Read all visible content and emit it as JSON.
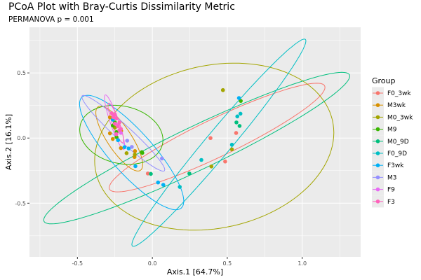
{
  "chart_data": {
    "type": "scatter",
    "title": "PCoA Plot with Bray-Curtis Dissimilarity Metric",
    "subtitle": "PERMANOVA p = 0.001",
    "xlabel": "Axis.1  [64.7%]",
    "ylabel": "Axis.2  [16.1%]",
    "xlim": [
      -0.82,
      1.39
    ],
    "ylim": [
      -0.912,
      0.85
    ],
    "xticks": [
      {
        "v": -0.5,
        "label": "-0.5"
      },
      {
        "v": 0.0,
        "label": "0.0"
      },
      {
        "v": 0.5,
        "label": "0.5"
      },
      {
        "v": 1.0,
        "label": "1.0"
      }
    ],
    "yticks": [
      {
        "v": 0.5,
        "label": "0.5"
      },
      {
        "v": 0.0,
        "label": "0.0"
      },
      {
        "v": -0.5,
        "label": "-0.5"
      }
    ],
    "xminor": [
      -0.75,
      -0.25,
      0.25,
      0.75,
      1.25
    ],
    "yminor": [
      0.75,
      0.25,
      -0.25,
      -0.75
    ],
    "grid": true,
    "legend": {
      "title": "Group",
      "placement": "right"
    },
    "series": [
      {
        "name": "F0_3wk",
        "color": "#F8766D",
        "points": [
          [
            0.559,
            0.039
          ],
          [
            0.388,
            0.0
          ],
          [
            0.486,
            -0.18
          ],
          [
            -0.03,
            -0.272
          ]
        ],
        "ellipse": {
          "center": [
            0.432,
            0.004
          ],
          "a": [
            0.718,
            0.396
          ],
          "b": [
            0.055,
            -0.13
          ]
        }
      },
      {
        "name": "M3wk",
        "color": "#D89000",
        "points": [
          [
            -0.116,
            -0.1
          ],
          [
            -0.119,
            -0.145
          ],
          [
            -0.21,
            -0.077
          ],
          [
            -0.264,
            -0.007
          ],
          [
            -0.283,
            0.036
          ],
          [
            -0.208,
            0.055
          ],
          [
            -0.283,
            0.159
          ]
        ],
        "ellipse": {
          "center": [
            -0.221,
            -0.004
          ],
          "a": [
            0.141,
            -0.244
          ],
          "b": [
            0.067,
            0.05
          ]
        }
      },
      {
        "name": "M0_3wk",
        "color": "#A3A500",
        "points": [
          [
            0.471,
            0.368
          ],
          [
            0.531,
            -0.087
          ],
          [
            0.394,
            -0.218
          ],
          [
            -0.172,
            -0.116
          ],
          [
            -0.117,
            -0.127
          ],
          [
            -0.25,
            0.08
          ]
        ],
        "ellipse": {
          "center": [
            0.413,
            -0.066
          ],
          "a": [
            0.798,
            0.107
          ],
          "b": [
            0.0,
            -0.632
          ]
        }
      },
      {
        "name": "M9",
        "color": "#39B600",
        "points": [
          [
            0.59,
            0.285
          ],
          [
            -0.067,
            -0.114
          ],
          [
            -0.07,
            -0.108
          ],
          [
            -0.239,
            0.007
          ],
          [
            -0.264,
            0.096
          ],
          [
            -0.239,
            0.046
          ],
          [
            -0.25,
            0.12
          ]
        ],
        "ellipse": {
          "center": [
            -0.207,
            0.025
          ],
          "a": [
            0.277,
            -0.054
          ],
          "b": [
            -0.019,
            -0.22
          ]
        }
      },
      {
        "name": "M0_9D",
        "color": "#00BF7D",
        "points": [
          [
            0.561,
            0.12
          ],
          [
            0.582,
            0.093
          ],
          [
            0.247,
            -0.272
          ],
          [
            -0.01,
            -0.275
          ]
        ],
        "ellipse": {
          "center": [
            0.296,
            -0.077
          ],
          "a": [
            1.019,
            0.562
          ],
          "b": [
            0.063,
            -0.149
          ]
        }
      },
      {
        "name": "F0_9D",
        "color": "#00BFC4",
        "points": [
          [
            0.588,
            0.187
          ],
          [
            0.567,
            0.166
          ],
          [
            0.531,
            -0.051
          ],
          [
            0.327,
            -0.168
          ],
          [
            0.183,
            -0.375
          ]
        ],
        "ellipse": {
          "center": [
            0.444,
            -0.036
          ],
          "a": [
            0.577,
            0.793
          ],
          "b": [
            0.065,
            -0.062
          ]
        }
      },
      {
        "name": "F3wk",
        "color": "#00B0F6",
        "points": [
          [
            0.578,
            0.307
          ],
          [
            0.038,
            -0.341
          ],
          [
            0.073,
            -0.359
          ],
          [
            -0.113,
            -0.216
          ],
          [
            -0.158,
            -0.08
          ],
          [
            -0.186,
            -0.07
          ],
          [
            -0.229,
            -0.016
          ],
          [
            -0.264,
            0.141
          ]
        ],
        "ellipse": {
          "center": [
            -0.138,
            -0.111
          ],
          "a": [
            0.331,
            -0.426
          ],
          "b": [
            0.106,
            0.107
          ]
        }
      },
      {
        "name": "M3",
        "color": "#9590FF",
        "points": [
          [
            0.064,
            -0.157
          ],
          [
            -0.137,
            -0.068
          ],
          [
            -0.168,
            -0.02
          ]
        ],
        "ellipse": {
          "center": [
            -0.194,
            0.037
          ],
          "a": [
            0.274,
            -0.288
          ],
          "b": [
            0.038,
            0.04
          ]
        }
      },
      {
        "name": "F9",
        "color": "#E76BF3",
        "points": [
          [
            -0.26,
            0.17
          ],
          [
            -0.23,
            0.1
          ],
          [
            -0.21,
            0.04
          ]
        ],
        "ellipse": {
          "center": [
            -0.252,
            0.122
          ],
          "a": [
            0.062,
            -0.209
          ],
          "b": [
            0.027,
            0.01
          ]
        }
      },
      {
        "name": "F3",
        "color": "#FF62BC",
        "points": [
          [
            -0.27,
            0.19
          ],
          [
            -0.25,
            0.18
          ],
          [
            -0.26,
            0.16
          ],
          [
            -0.24,
            0.15
          ],
          [
            -0.22,
            0.12
          ],
          [
            -0.23,
            0.09
          ],
          [
            -0.21,
            0.07
          ],
          [
            -0.25,
            0.11
          ],
          [
            -0.22,
            0.06
          ],
          [
            -0.24,
            0.03
          ]
        ],
        "ellipse": {
          "center": [
            -0.244,
            0.116
          ],
          "a": [
            0.047,
            -0.152
          ],
          "b": [
            0.022,
            0.009
          ]
        }
      }
    ]
  }
}
